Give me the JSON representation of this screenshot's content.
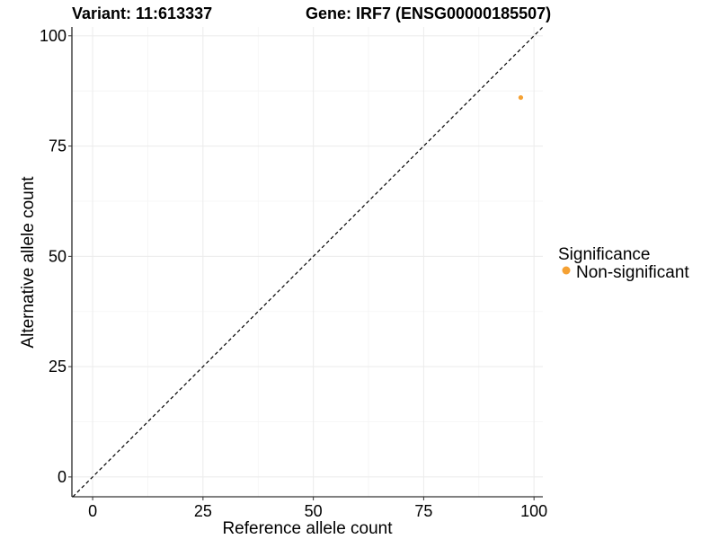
{
  "chart_data": {
    "type": "scatter",
    "title_left": "Variant: 11:613337",
    "title_right": "Gene: IRF7 (ENSG00000185507)",
    "xlabel": "Reference allele count",
    "ylabel": "Alternative allele count",
    "xlim": [
      -4.7,
      102
    ],
    "ylim": [
      -4.5,
      102
    ],
    "x_ticks": [
      0,
      25,
      50,
      75,
      100
    ],
    "y_ticks": [
      0,
      25,
      50,
      75,
      100
    ],
    "x_tick_labels": [
      "0",
      "25",
      "50",
      "75",
      "100"
    ],
    "y_tick_labels": [
      "0",
      "25",
      "50",
      "75",
      "100"
    ],
    "grid": true,
    "reference_line": "y = x (dashed)",
    "legend": {
      "title": "Significance",
      "placement": "right",
      "entries": [
        {
          "label": "Non-significant",
          "color": "#f5a133"
        }
      ]
    },
    "series": [
      {
        "name": "Non-significant",
        "color": "#f5a133",
        "points": [
          {
            "x": 97,
            "y": 86
          }
        ]
      }
    ]
  }
}
